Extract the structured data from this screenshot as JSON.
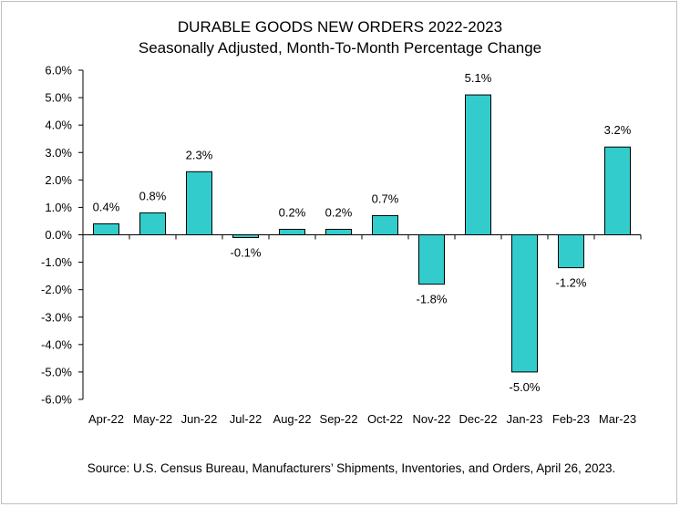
{
  "chart_data": {
    "type": "bar",
    "title": "DURABLE GOODS NEW ORDERS 2022-2023",
    "subtitle": "Seasonally Adjusted,  Month-To-Month Percentage Change",
    "categories": [
      "Apr-22",
      "May-22",
      "Jun-22",
      "Jul-22",
      "Aug-22",
      "Sep-22",
      "Oct-22",
      "Nov-22",
      "Dec-22",
      "Jan-23",
      "Feb-23",
      "Mar-23"
    ],
    "values": [
      0.4,
      0.8,
      2.3,
      -0.1,
      0.2,
      0.2,
      0.7,
      -1.8,
      5.1,
      -5.0,
      -1.2,
      3.2
    ],
    "value_labels": [
      "0.4%",
      "0.8%",
      "2.3%",
      "-0.1%",
      "0.2%",
      "0.2%",
      "0.7%",
      "-1.8%",
      "5.1%",
      "-5.0%",
      "-1.2%",
      "3.2%"
    ],
    "y_ticks": [
      6,
      5,
      4,
      3,
      2,
      1,
      0,
      -1,
      -2,
      -3,
      -4,
      -5,
      -6
    ],
    "y_tick_labels": [
      "6.0%",
      "5.0%",
      "4.0%",
      "3.0%",
      "2.0%",
      "1.0%",
      "0.0%",
      "-1.0%",
      "-2.0%",
      "-3.0%",
      "-4.0%",
      "-5.0%",
      "-6.0%"
    ],
    "ylim": [
      -6,
      6
    ],
    "xlabel": "",
    "ylabel": "",
    "grid": false,
    "legend": "none",
    "bar_color": "#33CCCC",
    "bar_edge_color": "#000000"
  },
  "source": "Source: U.S. Census Bureau, Manufacturers’ Shipments, Inventories, and Orders, April 26, 2023."
}
